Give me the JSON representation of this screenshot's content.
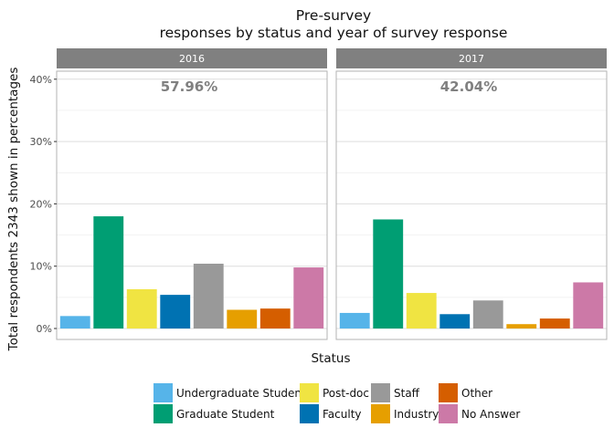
{
  "chart_data": {
    "type": "bar",
    "title": "Pre-survey",
    "subtitle": "responses by status and year of survey response",
    "xlabel": "Status",
    "ylabel": "Total respondents 2343 shown in percentages",
    "ylim": [
      0,
      41
    ],
    "yticks": [
      0,
      10,
      20,
      30,
      40
    ],
    "ytick_labels": [
      "0%",
      "10%",
      "20%",
      "30%",
      "40%"
    ],
    "grid": true,
    "legend_position": "bottom",
    "categories": [
      "Undergraduate Student",
      "Graduate Student",
      "Post-doc",
      "Faculty",
      "Staff",
      "Industry",
      "Other",
      "No Answer"
    ],
    "colors": [
      "#56B4E9",
      "#009E73",
      "#F0E442",
      "#0072B2",
      "#999999",
      "#E69F00",
      "#D55E00",
      "#CC79A7"
    ],
    "panels": [
      {
        "name": "2016",
        "annotation": "57.96%",
        "values": [
          2.0,
          18.0,
          6.3,
          5.4,
          10.4,
          3.0,
          3.2,
          9.8
        ]
      },
      {
        "name": "2017",
        "annotation": "42.04%",
        "values": [
          2.5,
          17.5,
          5.7,
          2.3,
          4.5,
          0.7,
          1.6,
          7.4
        ]
      }
    ]
  }
}
